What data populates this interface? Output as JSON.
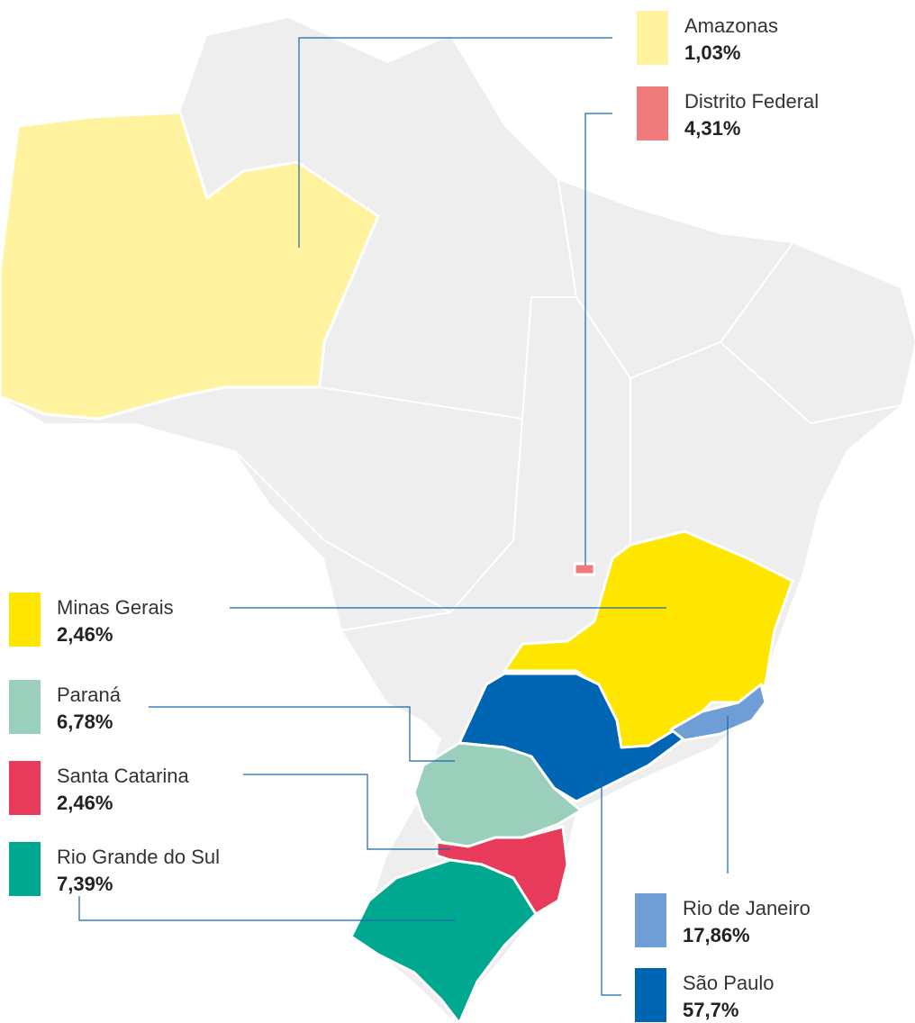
{
  "regions": [
    {
      "name": "Amazonas",
      "value": "1,03%",
      "color": "#fff3a0"
    },
    {
      "name": "Distrito Federal",
      "value": "4,31%",
      "color": "#ef7b7c"
    },
    {
      "name": "Minas Gerais",
      "value": "2,46%",
      "color": "#ffe600"
    },
    {
      "name": "Paraná",
      "value": "6,78%",
      "color": "#9ad0bb"
    },
    {
      "name": "Santa Catarina",
      "value": "2,46%",
      "color": "#e83a5a"
    },
    {
      "name": "Rio Grande do Sul",
      "value": "7,39%",
      "color": "#00a88f"
    },
    {
      "name": "Rio de Janeiro",
      "value": "17,86%",
      "color": "#6f9ed6"
    },
    {
      "name": "São Paulo",
      "value": "57,7%",
      "color": "#0066b3"
    }
  ]
}
